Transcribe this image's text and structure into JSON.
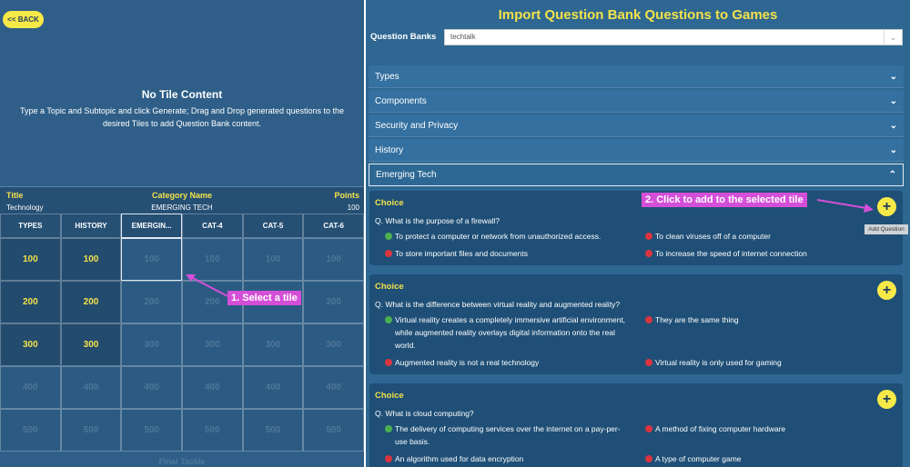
{
  "back_button": "<< BACK",
  "left_panel": {
    "title": "No Tile Content",
    "description": "Type a Topic and Subtopic and click Generate; Drag and Drop generated questions to the desired Tiles to add Question Bank content."
  },
  "tile_info": {
    "headers": [
      "Title",
      "Category Name",
      "Points"
    ],
    "values": [
      "Technology",
      "EMERGING TECH",
      "100"
    ]
  },
  "board": {
    "categories": [
      "TYPES",
      "HISTORY",
      "EMERGIN...",
      "CAT-4",
      "CAT-5",
      "CAT-6"
    ],
    "rows": [
      100,
      200,
      300,
      400,
      500
    ],
    "footer": "Final Tackle"
  },
  "annotations": [
    "1. Select a tile",
    "2. Click to add to the selected tile"
  ],
  "right_panel": {
    "title": "Import Question Bank Questions to Games",
    "bank_label": "Question Banks",
    "bank_value": "techtalk",
    "sections": [
      "Types",
      "Components",
      "Security and Privacy",
      "History",
      "Emerging Tech"
    ],
    "tooltip": "Add Question",
    "questions": [
      {
        "type": "Choice",
        "question": "Q. What is the purpose of a firewall?",
        "options": [
          {
            "text": "To protect a computer or network from unauthorized access.",
            "correct": true
          },
          {
            "text": "To clean viruses off of a computer",
            "correct": false
          },
          {
            "text": "To store important files and documents",
            "correct": false
          },
          {
            "text": "To increase the speed of internet connection",
            "correct": false
          }
        ]
      },
      {
        "type": "Choice",
        "question": "Q. What is the difference between virtual reality and augmented reality?",
        "options": [
          {
            "text": "Virtual reality creates a completely immersive artificial environment, while augmented reality overlays digital information onto the real world.",
            "correct": true
          },
          {
            "text": "They are the same thing",
            "correct": false
          },
          {
            "text": "Augmented reality is not a real technology",
            "correct": false
          },
          {
            "text": "Virtual reality is only used for gaming",
            "correct": false
          }
        ]
      },
      {
        "type": "Choice",
        "question": "Q. What is cloud computing?",
        "options": [
          {
            "text": "The delivery of computing services over the internet on a pay-per-use basis.",
            "correct": true
          },
          {
            "text": "A method of fixing computer hardware",
            "correct": false
          },
          {
            "text": "An algorithm used for data encryption",
            "correct": false
          },
          {
            "text": "A type of computer game",
            "correct": false
          }
        ]
      }
    ]
  }
}
